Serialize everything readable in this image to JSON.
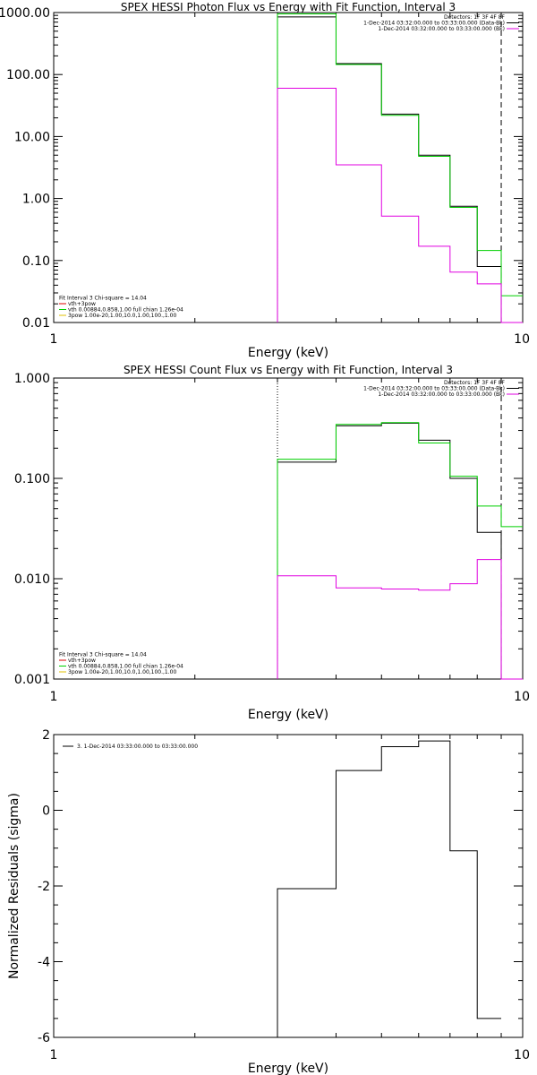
{
  "chart_data": [
    {
      "type": "line",
      "title": "SPEX HESSI Photon Flux vs Energy with Fit Function, Interval 3",
      "xlabel": "Energy (keV)",
      "ylabel": "",
      "xscale": "log",
      "yscale": "log",
      "xlim": [
        1,
        10
      ],
      "ylim": [
        0.01,
        1000
      ],
      "x_ticks": [
        1,
        10
      ],
      "x_tick_labels": [
        "1",
        "10"
      ],
      "y_ticks": [
        0.01,
        0.1,
        1,
        10,
        100,
        1000
      ],
      "y_tick_labels": [
        "0.01",
        "0.10",
        "1.00",
        "10.00",
        "100.00",
        "1000.00"
      ],
      "grid": false,
      "vlines": [
        {
          "x": 3.0,
          "style": "dotted",
          "color": "#000000"
        },
        {
          "x": 9.0,
          "style": "dashed",
          "color": "#000000"
        }
      ],
      "legend_top_right": [
        {
          "text": "Detectors: 1F 3F 4F 8F",
          "color": ""
        },
        {
          "text": "1-Dec-2014 03:32:00.000 to 03:33:00.000 (Data-Bk)",
          "color": "#000000"
        },
        {
          "text": "1-Dec-2014 03:32:00.000 to 03:33:00.000 (Bk)",
          "color": "#e000e0"
        }
      ],
      "legend_bottom_left": [
        {
          "text": "Fit Interval 3   Chi-square = 14.04",
          "color": ""
        },
        {
          "text": "vth+3pow",
          "color": "#e00000"
        },
        {
          "text": "vth 0.00884,0.858,1.00  full chian 1.26e-04",
          "color": "#00d000"
        },
        {
          "text": "3pow 1.00e-20,1.00,10.0,1.00,100.,1.00",
          "color": "#e0c000"
        }
      ],
      "series": [
        {
          "color": "#000000",
          "edges": [
            3,
            4,
            5,
            6,
            7,
            8,
            9,
            10
          ],
          "values": [
            850,
            150,
            23,
            5,
            0.75,
            0.08,
            0
          ]
        },
        {
          "color": "#00d000",
          "edges": [
            3,
            4,
            5,
            6,
            7,
            8,
            9,
            10
          ],
          "values": [
            950,
            145,
            22,
            4.8,
            0.72,
            0.145,
            0.027
          ]
        },
        {
          "color": "#e000e0",
          "edges": [
            3,
            4,
            5,
            6,
            7,
            8,
            9,
            10
          ],
          "values": [
            60,
            3.5,
            0.52,
            0.17,
            0.065,
            0.042,
            0
          ]
        }
      ]
    },
    {
      "type": "line",
      "title": "SPEX HESSI Count Flux vs Energy with Fit Function, Interval 3",
      "xlabel": "Energy (keV)",
      "ylabel": "",
      "xscale": "log",
      "yscale": "log",
      "xlim": [
        1,
        10
      ],
      "ylim": [
        0.001,
        1
      ],
      "x_ticks": [
        1,
        10
      ],
      "x_tick_labels": [
        "1",
        "10"
      ],
      "y_ticks": [
        0.001,
        0.01,
        0.1,
        1
      ],
      "y_tick_labels": [
        "0.001",
        "0.010",
        "0.100",
        "1.000"
      ],
      "grid": false,
      "vlines": [
        {
          "x": 3.0,
          "style": "dotted",
          "color": "#000000"
        },
        {
          "x": 9.0,
          "style": "dashed",
          "color": "#000000"
        }
      ],
      "legend_top_right": [
        {
          "text": "Detectors: 1F 3F 4F 8F",
          "color": ""
        },
        {
          "text": "1-Dec-2014 03:32:00.000 to 03:33:00.000 (Data-Bk)",
          "color": "#000000"
        },
        {
          "text": "1-Dec-2014 03:32:00.000 to 03:33:00.000 (Bk)",
          "color": "#e000e0"
        }
      ],
      "legend_bottom_left": [
        {
          "text": "Fit Interval 3   Chi-square = 14.04",
          "color": ""
        },
        {
          "text": "vth+3pow",
          "color": "#e00000"
        },
        {
          "text": "vth 0.00884,0.858,1.00  full chian 1.26e-04",
          "color": "#00d000"
        },
        {
          "text": "3pow 1.00e-20,1.00,10.0,1.00,100.,1.00",
          "color": "#e0c000"
        }
      ],
      "series": [
        {
          "color": "#000000",
          "edges": [
            3,
            4,
            5,
            6,
            7,
            8,
            9,
            10
          ],
          "values": [
            0.145,
            0.335,
            0.355,
            0.24,
            0.1,
            0.029,
            0
          ]
        },
        {
          "color": "#00d000",
          "edges": [
            3,
            4,
            5,
            6,
            7,
            8,
            9,
            10
          ],
          "values": [
            0.155,
            0.345,
            0.36,
            0.225,
            0.105,
            0.053,
            0.033
          ]
        },
        {
          "color": "#e000e0",
          "edges": [
            3,
            4,
            5,
            6,
            7,
            8,
            9,
            10
          ],
          "values": [
            0.0107,
            0.0081,
            0.0079,
            0.0077,
            0.0089,
            0.0155,
            0
          ]
        }
      ]
    },
    {
      "type": "line",
      "title": "",
      "xlabel": "Energy (keV)",
      "ylabel": "Normalized Residuals (sigma)",
      "xscale": "log",
      "yscale": "linear",
      "xlim": [
        1,
        10
      ],
      "ylim": [
        -6,
        2
      ],
      "x_ticks": [
        1,
        10
      ],
      "x_tick_labels": [
        "1",
        "10"
      ],
      "y_ticks": [
        -6,
        -4,
        -2,
        0,
        2
      ],
      "y_tick_labels": [
        "-6",
        "-4",
        "-2",
        "0",
        "2"
      ],
      "grid": false,
      "vlines": [],
      "legend_top_left": [
        {
          "text": "3. 1-Dec-2014 03:33:00.000 to 03:33:00.000",
          "color": "#000000"
        }
      ],
      "series": [
        {
          "color": "#000000",
          "edges": [
            3,
            4,
            5,
            6,
            7,
            8,
            9
          ],
          "values": [
            -2.07,
            1.05,
            1.68,
            1.83,
            -1.07,
            -5.5
          ]
        }
      ]
    }
  ]
}
